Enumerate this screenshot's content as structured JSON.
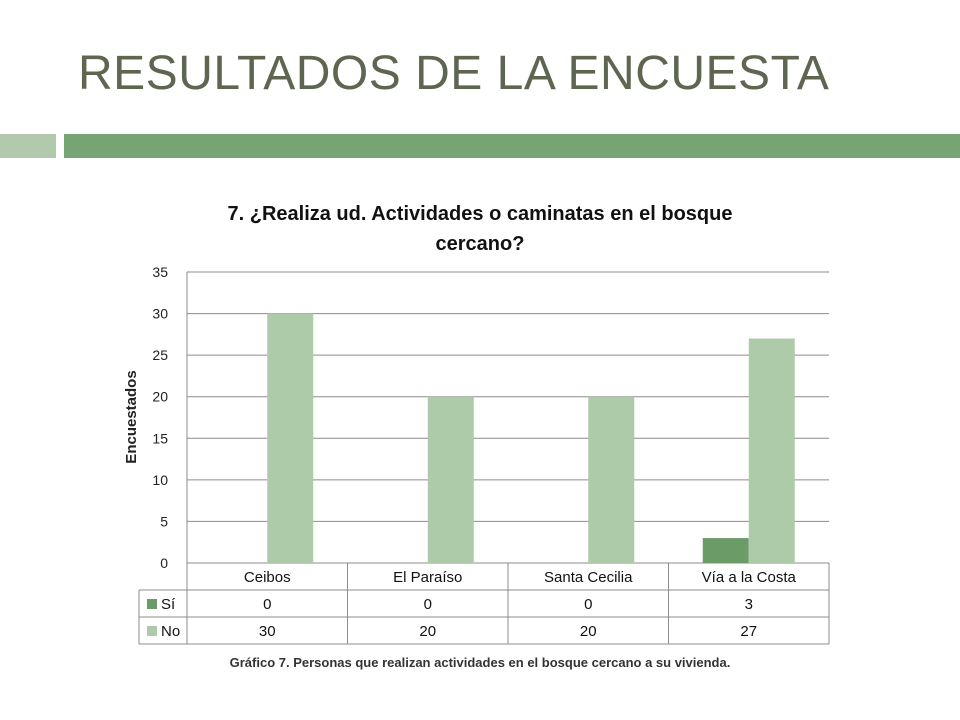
{
  "slide": {
    "title": "RESULTADOS DE LA ENCUESTA",
    "accent_light": "#b3c9ad",
    "accent_dark": "#76a473"
  },
  "chart_data": {
    "type": "bar",
    "title_lines": [
      "7. ¿Realiza ud. Actividades o caminatas en el bosque",
      "cercano?"
    ],
    "ylabel": "Encuestados",
    "xlabel": "",
    "ylim": [
      0,
      35
    ],
    "yticks": [
      0,
      5,
      10,
      15,
      20,
      25,
      30,
      35
    ],
    "grid": true,
    "legend_placement": "data-table",
    "categories": [
      "Ceibos",
      "El Paraíso",
      "Santa Cecilia",
      "Vía a la Costa"
    ],
    "series": [
      {
        "name": "Sí",
        "values": [
          0,
          0,
          0,
          3
        ],
        "color": "#6b9c68"
      },
      {
        "name": "No",
        "values": [
          30,
          20,
          20,
          27
        ],
        "color": "#aecba9"
      }
    ]
  },
  "caption": "Gráfico 7. Personas que realizan actividades en el bosque cercano a su vivienda."
}
